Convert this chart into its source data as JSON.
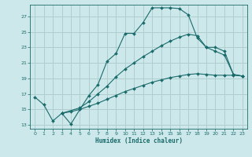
{
  "xlabel": "Humidex (Indice chaleur)",
  "bg_color": "#cde8eb",
  "grid_color": "#b0cdd0",
  "line_color": "#1a6b6b",
  "xlim": [
    -0.5,
    23.5
  ],
  "ylim": [
    12.5,
    28.5
  ],
  "yticks": [
    13,
    15,
    17,
    19,
    21,
    23,
    25,
    27
  ],
  "xticks": [
    0,
    1,
    2,
    3,
    4,
    5,
    6,
    7,
    8,
    9,
    10,
    11,
    12,
    13,
    14,
    15,
    16,
    17,
    18,
    19,
    20,
    21,
    22,
    23
  ],
  "curve1_x": [
    0,
    1,
    2,
    3,
    4,
    5,
    6,
    7,
    8,
    9,
    10,
    11,
    12,
    13,
    14,
    15,
    16,
    17,
    18,
    19,
    20,
    21,
    22,
    23
  ],
  "curve1_y": [
    16.6,
    15.6,
    13.5,
    14.5,
    13.1,
    15.0,
    16.8,
    18.2,
    21.2,
    22.2,
    24.8,
    24.8,
    26.2,
    28.1,
    28.1,
    28.1,
    28.0,
    27.2,
    24.2,
    23.0,
    22.5,
    22.0,
    19.5,
    19.3
  ],
  "curve2_x": [
    3,
    5,
    6,
    7,
    8,
    9,
    10,
    11,
    12,
    13,
    14,
    15,
    16,
    17,
    18,
    19,
    20,
    21,
    22,
    23
  ],
  "curve2_y": [
    14.5,
    15.2,
    16.0,
    17.0,
    18.0,
    19.2,
    20.2,
    21.0,
    21.8,
    22.5,
    23.2,
    23.8,
    24.3,
    24.7,
    24.5,
    23.0,
    23.0,
    22.5,
    19.5,
    19.3
  ],
  "curve3_x": [
    3,
    4,
    5,
    6,
    7,
    8,
    9,
    10,
    11,
    12,
    13,
    14,
    15,
    16,
    17,
    18,
    19,
    20,
    21,
    22,
    23
  ],
  "curve3_y": [
    14.5,
    14.7,
    15.0,
    15.4,
    15.8,
    16.3,
    16.8,
    17.3,
    17.7,
    18.1,
    18.5,
    18.8,
    19.1,
    19.3,
    19.5,
    19.6,
    19.5,
    19.4,
    19.4,
    19.4,
    19.3
  ]
}
